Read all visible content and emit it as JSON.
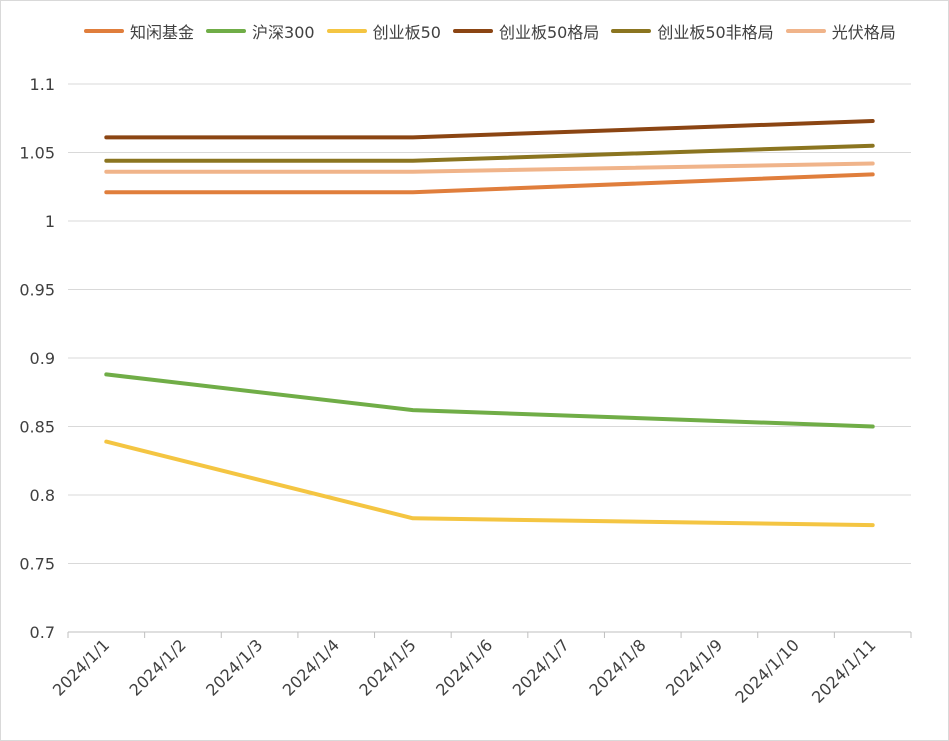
{
  "chart_data": {
    "type": "line",
    "categories": [
      "2024/1/1",
      "2024/1/2",
      "2024/1/3",
      "2024/1/4",
      "2024/1/5",
      "2024/1/6",
      "2024/1/7",
      "2024/1/8",
      "2024/1/9",
      "2024/1/10",
      "2024/1/11"
    ],
    "series": [
      {
        "name": "知闲基金",
        "color": "#E07E3C",
        "points": [
          [
            0,
            1.021
          ],
          [
            4,
            1.021
          ],
          [
            10,
            1.034
          ]
        ]
      },
      {
        "name": "沪深300",
        "color": "#70AD47",
        "points": [
          [
            0,
            0.888
          ],
          [
            4,
            0.862
          ],
          [
            10,
            0.85
          ]
        ]
      },
      {
        "name": "创业板50",
        "color": "#F4C542",
        "points": [
          [
            0,
            0.839
          ],
          [
            4,
            0.783
          ],
          [
            10,
            0.778
          ]
        ]
      },
      {
        "name": "创业板50格局",
        "color": "#8B4513",
        "points": [
          [
            0,
            1.061
          ],
          [
            4,
            1.061
          ],
          [
            10,
            1.073
          ]
        ]
      },
      {
        "name": "创业板50非格局",
        "color": "#8B7520",
        "points": [
          [
            0,
            1.044
          ],
          [
            4,
            1.044
          ],
          [
            10,
            1.055
          ]
        ]
      },
      {
        "name": "光伏格局",
        "color": "#F0B48A",
        "points": [
          [
            0,
            1.036
          ],
          [
            4,
            1.036
          ],
          [
            10,
            1.042
          ]
        ]
      }
    ],
    "yticks": [
      "0.7",
      "0.75",
      "0.8",
      "0.85",
      "0.9",
      "0.95",
      "1",
      "1.05",
      "1.1"
    ],
    "ylim": [
      0.7,
      1.1
    ],
    "grid": true,
    "legend": "top",
    "title": "",
    "xlabel": "",
    "ylabel": ""
  }
}
